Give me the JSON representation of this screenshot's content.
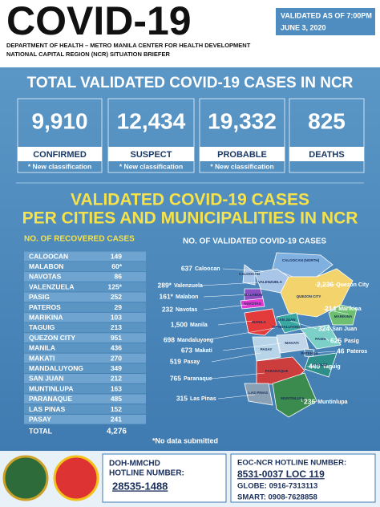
{
  "header": {
    "title": "COVID-19",
    "validated": [
      "VALIDATED AS OF 7:00PM",
      "JUNE 3, 2020"
    ],
    "department": [
      "DEPARTMENT OF HEALTH – METRO MANILA CENTER FOR HEALTH DEVELOPMENT",
      "NATIONAL CAPITAL REGION (NCR) SITUATION BRIEFER"
    ]
  },
  "totals": {
    "title": "TOTAL VALIDATED COVID-19 CASES IN NCR",
    "cards": [
      {
        "value": "9,910",
        "label": "CONFIRMED",
        "note": "* New classification"
      },
      {
        "value": "12,434",
        "label": "SUSPECT",
        "note": "* New classification"
      },
      {
        "value": "19,332",
        "label": "PROBABLE",
        "note": "* New classification"
      },
      {
        "value": "825",
        "label": "DEATHS"
      }
    ]
  },
  "cities": {
    "title": [
      "VALIDATED COVID-19 CASES",
      "PER CITIES AND MUNICIPALITIES IN NCR"
    ],
    "recovered": {
      "title": "NO. OF RECOVERED CASES",
      "rows": [
        [
          "CALOOCAN",
          "149"
        ],
        [
          "MALABON",
          "60*"
        ],
        [
          "NAVOTAS",
          "86"
        ],
        [
          "VALENZUELA",
          "125*"
        ],
        [
          "PASIG",
          "252"
        ],
        [
          "PATEROS",
          "29"
        ],
        [
          "MARIKINA",
          "103"
        ],
        [
          "TAGUIG",
          "213"
        ],
        [
          "QUEZON CITY",
          "951"
        ],
        [
          "MANILA",
          "436"
        ],
        [
          "MAKATI",
          "270"
        ],
        [
          "MANDALUYONG",
          "349"
        ],
        [
          "SAN JUAN",
          "212"
        ],
        [
          "MUNTINLUPA",
          "163"
        ],
        [
          "PARANAQUE",
          "485"
        ],
        [
          "LAS PINAS",
          "152"
        ],
        [
          "PASAY",
          "241"
        ]
      ],
      "total": [
        "TOTAL",
        "4,276"
      ]
    },
    "map": {
      "title": "NO. OF  VALIDATED COVID-19 CASES",
      "callouts": [
        [
          "637",
          "Caloocan"
        ],
        [
          "289*",
          "Valenzuela"
        ],
        [
          "161*",
          "Malabon"
        ],
        [
          "232",
          "Navotas"
        ],
        [
          "1,500",
          "Manila"
        ],
        [
          "698",
          "Mandaluyong"
        ],
        [
          "673",
          "Makati"
        ],
        [
          "519",
          "Pasay"
        ],
        [
          "765",
          "Paranaque"
        ],
        [
          "315",
          "Las Pinas"
        ],
        [
          "2,236",
          "Quezon City"
        ],
        [
          "214",
          "Marikina"
        ],
        [
          "324",
          "San Juan"
        ],
        [
          "625",
          "Pasig"
        ],
        [
          "46",
          "Pateros"
        ],
        [
          "440",
          "Taguig"
        ],
        [
          "236",
          "Muntinlupa"
        ]
      ],
      "regions": [
        "CALOOCAN (NORTH)",
        "VALENZUELA",
        "QUEZON CITY",
        "MARIKINA",
        "MALABON",
        "NAVOTAS",
        "MANILA",
        "SAN JUAN",
        "MANDALUYONG",
        "PASIG",
        "MAKATI",
        "PATEROS",
        "PASAY",
        "TAGUIG",
        "PARANAQUE",
        "LAS PINAS",
        "MUNTINLUPA",
        "CALOOCAN"
      ]
    },
    "note": "*No data submitted"
  },
  "footer": {
    "hotline": {
      "title": [
        "DOH-MMCHD",
        "HOTLINE NUMBER:"
      ],
      "number": "28535-1488"
    },
    "eoc": {
      "title": "EOC-NCR HOTLINE NUMBER:",
      "number": "8531-0037 LOC 119",
      "globe": "GLOBE: 0916-7313113",
      "smart": "SMART: 0908-7628858"
    }
  }
}
